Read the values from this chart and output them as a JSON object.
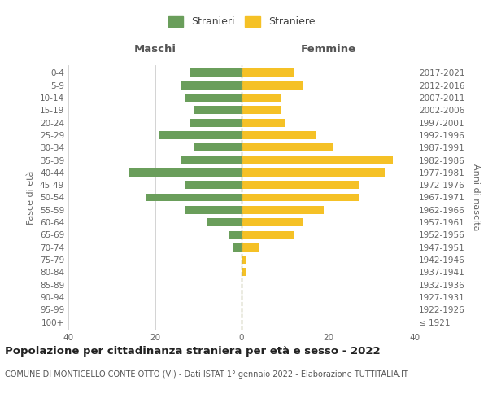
{
  "age_groups": [
    "100+",
    "95-99",
    "90-94",
    "85-89",
    "80-84",
    "75-79",
    "70-74",
    "65-69",
    "60-64",
    "55-59",
    "50-54",
    "45-49",
    "40-44",
    "35-39",
    "30-34",
    "25-29",
    "20-24",
    "15-19",
    "10-14",
    "5-9",
    "0-4"
  ],
  "birth_years": [
    "≤ 1921",
    "1922-1926",
    "1927-1931",
    "1932-1936",
    "1937-1941",
    "1942-1946",
    "1947-1951",
    "1952-1956",
    "1957-1961",
    "1962-1966",
    "1967-1971",
    "1972-1976",
    "1977-1981",
    "1982-1986",
    "1987-1991",
    "1992-1996",
    "1997-2001",
    "2002-2006",
    "2007-2011",
    "2012-2016",
    "2017-2021"
  ],
  "maschi": [
    0,
    0,
    0,
    0,
    0,
    0,
    2,
    3,
    8,
    13,
    22,
    13,
    26,
    14,
    11,
    19,
    12,
    11,
    13,
    14,
    12
  ],
  "femmine": [
    0,
    0,
    0,
    0,
    1,
    1,
    4,
    12,
    14,
    19,
    27,
    27,
    33,
    35,
    21,
    17,
    10,
    9,
    9,
    14,
    12
  ],
  "maschi_color": "#6a9e5b",
  "femmine_color": "#f5c126",
  "background_color": "#ffffff",
  "grid_color": "#cccccc",
  "title": "Popolazione per cittadinanza straniera per età e sesso - 2022",
  "subtitle": "COMUNE DI MONTICELLO CONTE OTTO (VI) - Dati ISTAT 1° gennaio 2022 - Elaborazione TUTTITALIA.IT",
  "xlabel_left": "Maschi",
  "xlabel_right": "Femmine",
  "ylabel_left": "Fasce di età",
  "ylabel_right": "Anni di nascita",
  "legend_stranieri": "Stranieri",
  "legend_straniere": "Straniere",
  "xlim": 40,
  "title_fontsize": 9.5,
  "subtitle_fontsize": 7,
  "tick_fontsize": 7.5,
  "header_fontsize": 9.5,
  "ylabel_fontsize": 8
}
